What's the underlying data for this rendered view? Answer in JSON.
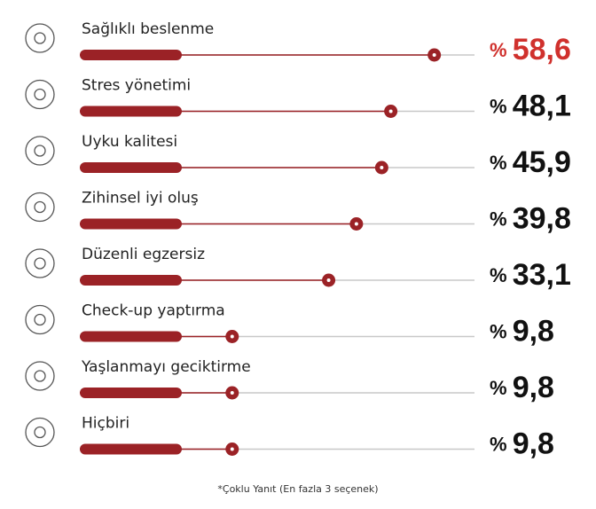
{
  "chart_data": {
    "type": "bar",
    "categories": [
      "Sağlıklı beslenme",
      "Stres yönetimi",
      "Uyku kalitesi",
      "Zihinsel iyi oluş",
      "Düzenli egzersiz",
      "Check-up yaptırma",
      "Yaşlanmayı geciktirme",
      "Hiçbiri"
    ],
    "values": [
      58.6,
      48.1,
      45.9,
      39.8,
      33.1,
      9.8,
      9.8,
      9.8
    ],
    "value_labels": [
      "% 58,6",
      "% 48,1",
      "% 45,9",
      "% 39,8",
      "% 33,1",
      "% 9,8",
      "% 9,8",
      "% 9,8"
    ],
    "color": "#9b2226",
    "value_label_colors": [
      "#d0312d",
      "#111111",
      "#111111",
      "#111111",
      "#111111",
      "#111111",
      "#111111",
      "#111111"
    ],
    "footnote": "*Çoklu Yanıt (En fazla 3 seçenek)"
  }
}
